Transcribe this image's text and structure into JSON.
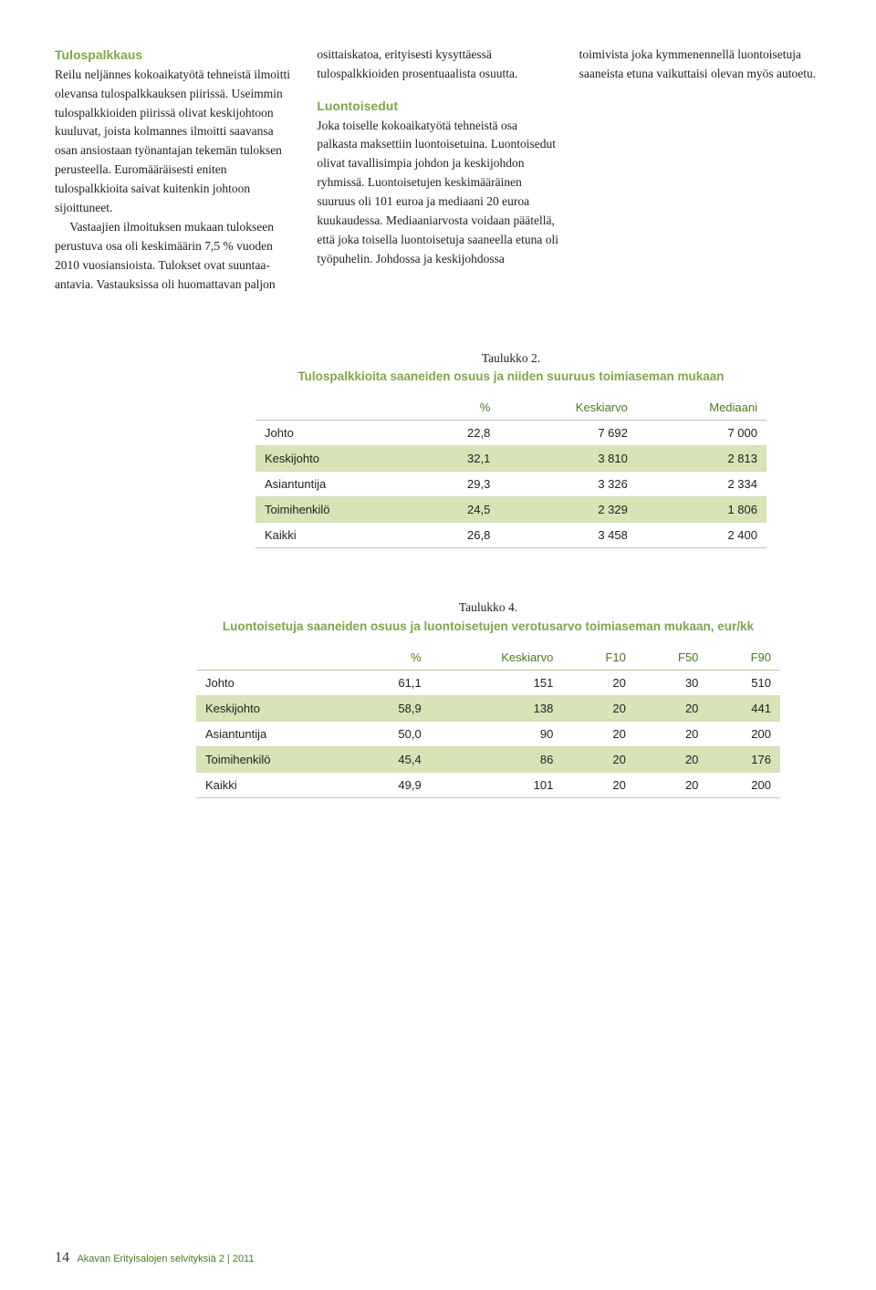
{
  "columns": {
    "col1": {
      "heading": "Tulospalkkaus",
      "p1": "Reilu neljännes kokoaikatyötä tehneistä ilmoitti olevansa tulospalkkauksen piirissä. Useimmin tulospalkkioiden piirissä olivat keskijohtoon kuuluvat, joista kolmannes ilmoitti saavansa osan ansiostaan työnantajan tekemän tuloksen perusteella. Euromääräisesti eniten tulospalkkioita saivat kuitenkin johtoon sijoittuneet.",
      "p2": "Vastaajien ilmoituksen mukaan tulokseen perustuva osa oli keskimäärin 7,5 % vuoden 2010 vuosiansioista. Tulokset ovat suuntaa-antavia. Vastauksissa oli huomattavan paljon"
    },
    "col2": {
      "p1": "osittaiskatoa, erityisesti kysyttäessä tulospalkkioiden prosentuaalista osuutta.",
      "heading": "Luontoisedut",
      "p2": "Joka toiselle kokoaikatyötä tehneistä osa palkasta maksettiin luontoisetuina. Luontoisedut olivat tavallisimpia johdon ja keskijohdon ryhmissä. Luontoisetujen keskimääräinen suuruus oli 101 euroa ja mediaani 20 euroa kuukaudessa. Mediaaniarvosta voidaan päätellä, että joka toisella luontoisetuja saaneella etuna oli työpuhelin. Johdossa ja keskijohdossa"
    },
    "col3": {
      "p1": "toimivista joka kymmenennellä luontoisetuja saaneista etuna vaikuttaisi olevan myös autoetu."
    }
  },
  "table2": {
    "num": "Taulukko 2.",
    "title": "Tulospalkkioita saaneiden osuus ja niiden suuruus toimiaseman mukaan",
    "headers": [
      "",
      "%",
      "Keskiarvo",
      "Mediaani"
    ],
    "rows": [
      {
        "cells": [
          "Johto",
          "22,8",
          "7 692",
          "7 000"
        ],
        "alt": false
      },
      {
        "cells": [
          "Keskijohto",
          "32,1",
          "3 810",
          "2 813"
        ],
        "alt": true
      },
      {
        "cells": [
          "Asiantuntija",
          "29,3",
          "3 326",
          "2 334"
        ],
        "alt": false
      },
      {
        "cells": [
          "Toimihenkilö",
          "24,5",
          "2 329",
          "1 806"
        ],
        "alt": true
      },
      {
        "cells": [
          "Kaikki",
          "26,8",
          "3 458",
          "2 400"
        ],
        "alt": false
      }
    ]
  },
  "table4": {
    "num": "Taulukko 4.",
    "title": "Luontoisetuja saaneiden osuus ja luontoisetujen verotusarvo toimiaseman mukaan, eur/kk",
    "headers": [
      "",
      "%",
      "Keskiarvo",
      "F10",
      "F50",
      "F90"
    ],
    "rows": [
      {
        "cells": [
          "Johto",
          "61,1",
          "151",
          "20",
          "30",
          "510"
        ],
        "alt": false
      },
      {
        "cells": [
          "Keskijohto",
          "58,9",
          "138",
          "20",
          "20",
          "441"
        ],
        "alt": true
      },
      {
        "cells": [
          "Asiantuntija",
          "50,0",
          "90",
          "20",
          "20",
          "200"
        ],
        "alt": false
      },
      {
        "cells": [
          "Toimihenkilö",
          "45,4",
          "86",
          "20",
          "20",
          "176"
        ],
        "alt": true
      },
      {
        "cells": [
          "Kaikki",
          "49,9",
          "101",
          "20",
          "20",
          "200"
        ],
        "alt": false
      }
    ]
  },
  "footer": {
    "page": "14",
    "text": "Akavan Erityisalojen selvityksiä 2 | 2011"
  },
  "colors": {
    "accent_green": "#7fa64b",
    "header_green": "#4b7a1f",
    "row_alt": "#d8e3b6",
    "rule": "#bfc6a6"
  }
}
